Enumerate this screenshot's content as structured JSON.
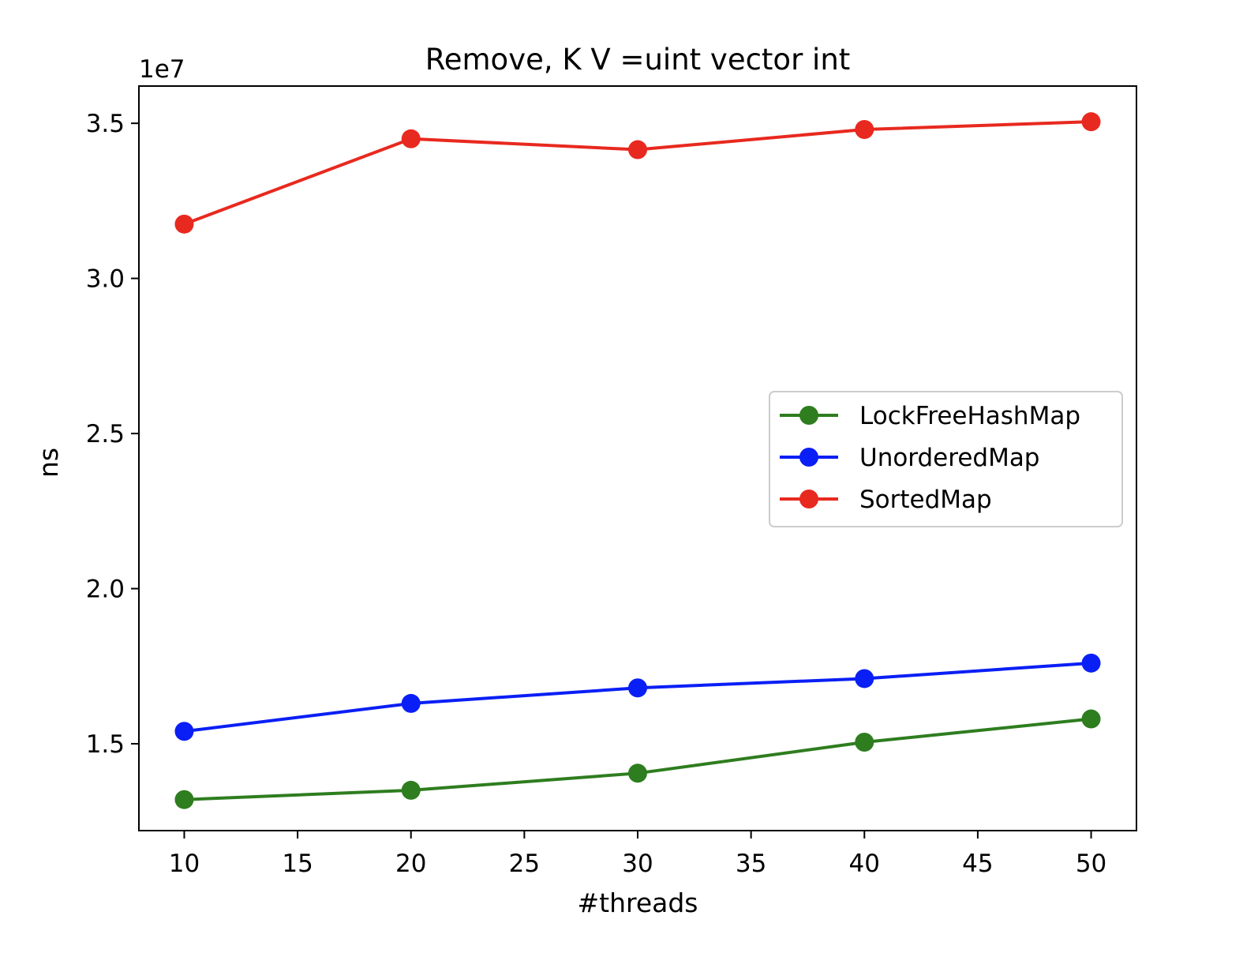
{
  "chart_data": {
    "type": "line",
    "title": "Remove, K V =uint vector int",
    "xlabel": "#threads",
    "ylabel": "ns",
    "y_offset_label": "1e7",
    "x": [
      10,
      20,
      30,
      40,
      50
    ],
    "xlim": [
      8,
      52
    ],
    "ylim": [
      12200000,
      36200000
    ],
    "x_ticks": [
      10,
      15,
      20,
      25,
      30,
      35,
      40,
      45,
      50
    ],
    "x_tick_labels": [
      "10",
      "15",
      "20",
      "25",
      "30",
      "35",
      "40",
      "45",
      "50"
    ],
    "y_ticks": [
      15000000,
      20000000,
      25000000,
      30000000,
      35000000
    ],
    "y_tick_labels": [
      "1.5",
      "2.0",
      "2.5",
      "3.0",
      "3.5"
    ],
    "grid": false,
    "legend_position": "center-right",
    "series": [
      {
        "name": "LockFreeHashMap",
        "color": "#2e7d1f",
        "values": [
          13200000,
          13500000,
          14050000,
          15050000,
          15800000
        ]
      },
      {
        "name": "UnorderedMap",
        "color": "#0a1ff5",
        "values": [
          15400000,
          16300000,
          16800000,
          17100000,
          17600000
        ]
      },
      {
        "name": "SortedMap",
        "color": "#e8291f",
        "values": [
          31750000,
          34500000,
          34150000,
          34800000,
          35050000
        ]
      }
    ]
  }
}
